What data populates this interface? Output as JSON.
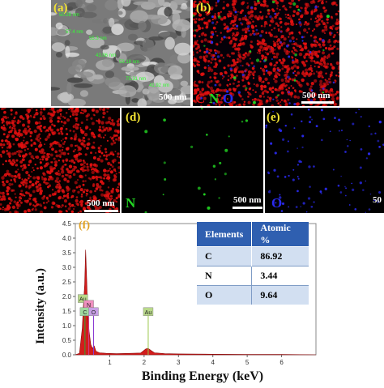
{
  "panels": {
    "a": {
      "label": "(a)",
      "scale": "500 nm"
    },
    "b": {
      "label": "(b)",
      "scale": "500 nm",
      "legend": [
        "C",
        "N",
        "O"
      ]
    },
    "c": {
      "scale": "500 nm"
    },
    "d": {
      "label": "(d)",
      "scale": "500 nm",
      "element": "N"
    },
    "e": {
      "label": "(e)",
      "scale": "50",
      "element": "O"
    },
    "f": {
      "label": "(f)"
    }
  },
  "sem_annotations": [
    "50.28 nm",
    "55.3 nm",
    "53.18 nm",
    "41.92 nm",
    "57.4 nm",
    "43.06 nm",
    "75.31 nm"
  ],
  "colors": {
    "carbon": "#e01010",
    "nitrogen": "#22d622",
    "oxygen": "#2a2aee",
    "label_yellow": "#f2e233",
    "spectrum": "#d21c1c",
    "table_bg": "#d2dff1",
    "table_border": "#7f9cc6"
  },
  "table": {
    "headers": [
      "Elements",
      "Atomic %"
    ],
    "rows": [
      [
        "C",
        "86.92"
      ],
      [
        "N",
        "3.44"
      ],
      [
        "O",
        "9.64"
      ]
    ]
  },
  "chart_data": {
    "type": "area",
    "xlabel": "Binding Energy (keV)",
    "ylabel": "Intensity (a.u.)",
    "xlim": [
      0,
      7
    ],
    "ylim": [
      0,
      4.5
    ],
    "xticks": [
      1,
      2,
      3,
      4,
      5,
      6
    ],
    "yticks": [
      0.0,
      0.5,
      1.0,
      1.5,
      2.0,
      2.5,
      3.0,
      3.5,
      4.0,
      4.5
    ],
    "series": [
      {
        "x": [
          0.0,
          0.12,
          0.2,
          0.24,
          0.27,
          0.3,
          0.33,
          0.36,
          0.4,
          0.45,
          0.5,
          0.55,
          0.6,
          0.7,
          0.9,
          1.2,
          1.6,
          1.9,
          2.05,
          2.12,
          2.2,
          2.3,
          2.6,
          3.0,
          4.0,
          5.0,
          6.0,
          7.0
        ],
        "y": [
          0.0,
          0.05,
          0.9,
          1.8,
          2.4,
          3.6,
          2.6,
          1.4,
          0.8,
          0.35,
          0.22,
          0.3,
          0.12,
          0.07,
          0.05,
          0.04,
          0.05,
          0.06,
          0.2,
          0.22,
          0.15,
          0.07,
          0.04,
          0.03,
          0.02,
          0.01,
          0.01,
          0.0
        ]
      }
    ],
    "peak_labels": [
      {
        "text": "Au",
        "x": 0.22,
        "y": 1.9,
        "color": "#b9d98a"
      },
      {
        "text": "N",
        "x": 0.39,
        "y": 1.7,
        "color": "#ef8fbf"
      },
      {
        "text": "C",
        "x": 0.28,
        "y": 1.45,
        "color": "#9fd99f"
      },
      {
        "text": "O",
        "x": 0.53,
        "y": 1.45,
        "color": "#c79fe6"
      },
      {
        "text": "Au",
        "x": 2.12,
        "y": 1.45,
        "color": "#b9d98a"
      }
    ],
    "label_lines": [
      {
        "x": 0.28,
        "top": 1.4,
        "color": "#2fa82f"
      },
      {
        "x": 0.39,
        "top": 1.65,
        "color": "#d23a8a"
      },
      {
        "x": 0.53,
        "top": 1.4,
        "color": "#8a3ad2"
      },
      {
        "x": 2.12,
        "top": 1.4,
        "color": "#9bc84a"
      }
    ]
  }
}
